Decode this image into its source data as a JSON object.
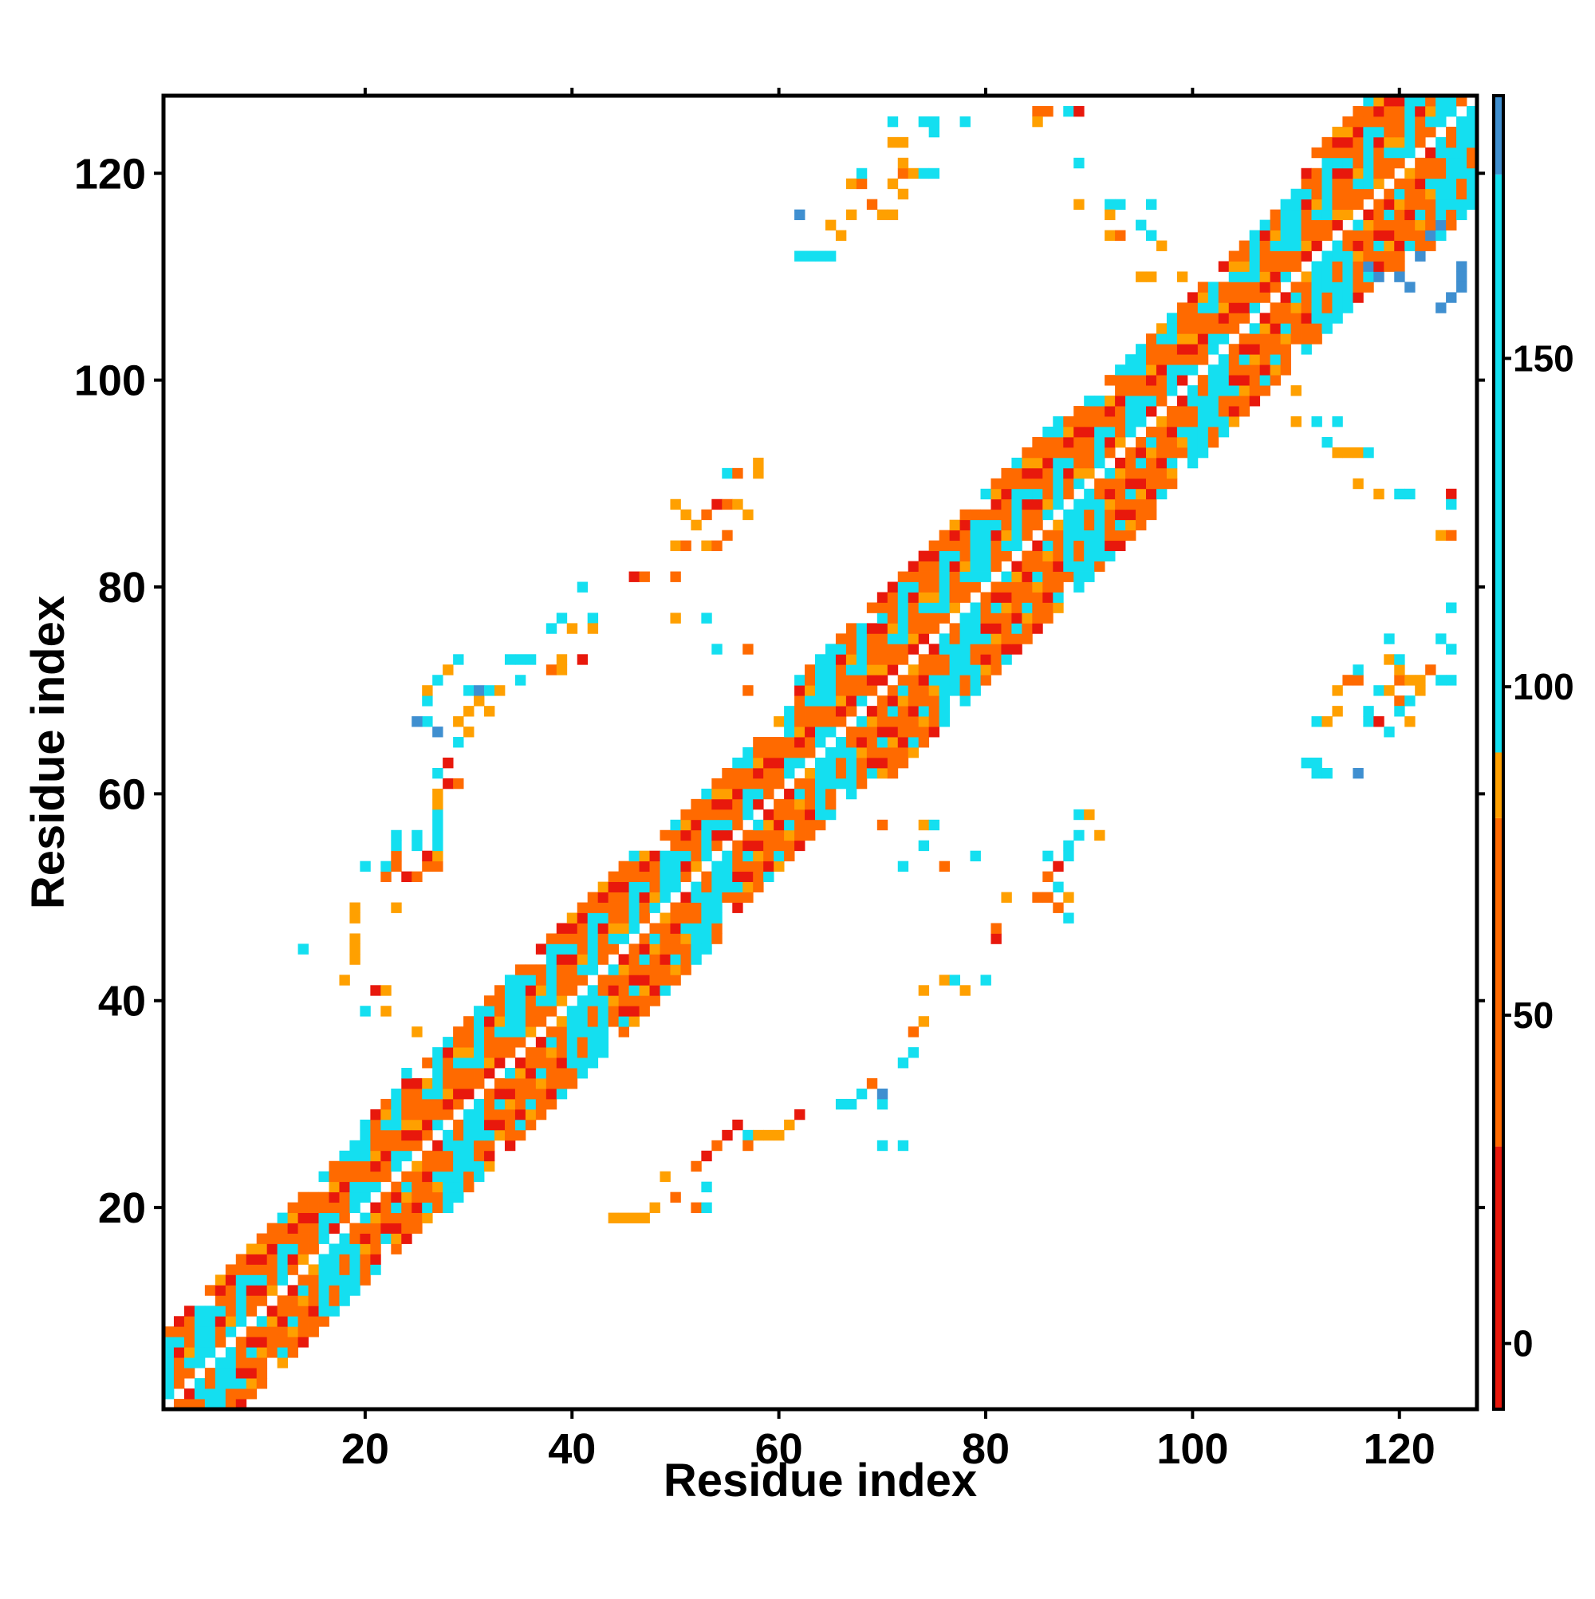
{
  "chart_data": {
    "type": "heatmap",
    "title": "",
    "xlabel": "Residue index",
    "ylabel": "Residue index",
    "xlim": [
      1,
      127
    ],
    "ylim": [
      1,
      127
    ],
    "x_ticks": [
      20,
      40,
      60,
      80,
      100,
      120
    ],
    "y_ticks": [
      20,
      40,
      60,
      80,
      100,
      120
    ],
    "colorbar": {
      "range": [
        -10,
        190
      ],
      "ticks": [
        0,
        50,
        100,
        150
      ],
      "bands": [
        {
          "from": -10,
          "to": 30,
          "color": "#e8180c"
        },
        {
          "from": 30,
          "to": 80,
          "color": "#ff6a00"
        },
        {
          "from": 80,
          "to": 90,
          "color": "#ffa000"
        },
        {
          "from": 90,
          "to": 178,
          "color": "#14dff0"
        },
        {
          "from": 178,
          "to": 190,
          "color": "#3f8fd0"
        }
      ]
    },
    "palette": {
      "1": "#e8180c",
      "2": "#ff6a00",
      "3": "#ffa000",
      "4": "#14dff0",
      "5": "#3f8fd0"
    },
    "diagonal_band": {
      "description_hidden": true,
      "segments": [
        {
          "from": 1,
          "to": 20,
          "width": 7
        },
        {
          "from": 20,
          "to": 47,
          "width": 8
        },
        {
          "from": 47,
          "to": 62,
          "width": 7
        },
        {
          "from": 62,
          "to": 87,
          "width": 9
        },
        {
          "from": 87,
          "to": 111,
          "width": 8
        },
        {
          "from": 111,
          "to": 127,
          "width": 10
        }
      ],
      "pattern": [
        2,
        2,
        4,
        2,
        1,
        2,
        4,
        4,
        2,
        3,
        2,
        4,
        2,
        1,
        4,
        2,
        3,
        4,
        2,
        2,
        4,
        1,
        2,
        4
      ]
    },
    "off_diagonal_contacts": [
      [
        14,
        45,
        4
      ],
      [
        18,
        42,
        3
      ],
      [
        19,
        44,
        3
      ],
      [
        19,
        45,
        3
      ],
      [
        19,
        46,
        3
      ],
      [
        19,
        48,
        3
      ],
      [
        19,
        49,
        3
      ],
      [
        20,
        39,
        4
      ],
      [
        20,
        53,
        4
      ],
      [
        21,
        41,
        1
      ],
      [
        22,
        39,
        3
      ],
      [
        22,
        41,
        3
      ],
      [
        22,
        52,
        2
      ],
      [
        22,
        53,
        4
      ],
      [
        23,
        49,
        3
      ],
      [
        23,
        53,
        2
      ],
      [
        23,
        54,
        2
      ],
      [
        23,
        55,
        4
      ],
      [
        23,
        56,
        4
      ],
      [
        24,
        33,
        4
      ],
      [
        24,
        52,
        1
      ],
      [
        25,
        37,
        3
      ],
      [
        25,
        52,
        2
      ],
      [
        25,
        55,
        4
      ],
      [
        25,
        56,
        4
      ],
      [
        26,
        53,
        2
      ],
      [
        26,
        54,
        1
      ],
      [
        27,
        53,
        2
      ],
      [
        27,
        54,
        3
      ],
      [
        27,
        55,
        4
      ],
      [
        27,
        56,
        4
      ],
      [
        27,
        57,
        4
      ],
      [
        27,
        58,
        4
      ],
      [
        27,
        59,
        3
      ],
      [
        27,
        60,
        3
      ],
      [
        28,
        61,
        1
      ],
      [
        27,
        62,
        4
      ],
      [
        27,
        66,
        5
      ],
      [
        26,
        67,
        4
      ],
      [
        26,
        69,
        4
      ],
      [
        29,
        61,
        2
      ],
      [
        28,
        63,
        1
      ],
      [
        29,
        65,
        4
      ],
      [
        29,
        67,
        3
      ],
      [
        30,
        70,
        3
      ],
      [
        31,
        69,
        3
      ],
      [
        32,
        68,
        3
      ],
      [
        34,
        73,
        4
      ],
      [
        35,
        71,
        4
      ],
      [
        30,
        66,
        3
      ],
      [
        25,
        67,
        5
      ],
      [
        26,
        70,
        3
      ],
      [
        27,
        71,
        4
      ],
      [
        28,
        72,
        3
      ],
      [
        29,
        73,
        4
      ],
      [
        30,
        70,
        4
      ],
      [
        31,
        70,
        5
      ],
      [
        32,
        70,
        4
      ],
      [
        33,
        70,
        3
      ],
      [
        30,
        68,
        3
      ],
      [
        44,
        19,
        3
      ],
      [
        45,
        19,
        3
      ],
      [
        46,
        19,
        3
      ],
      [
        47,
        19,
        3
      ],
      [
        48,
        20,
        3
      ],
      [
        49,
        23,
        3
      ],
      [
        50,
        21,
        2
      ],
      [
        52,
        20,
        2
      ],
      [
        53,
        20,
        4
      ],
      [
        53,
        22,
        4
      ],
      [
        52,
        24,
        2
      ],
      [
        53,
        25,
        1
      ],
      [
        54,
        26,
        2
      ],
      [
        55,
        27,
        1
      ],
      [
        56,
        28,
        1
      ],
      [
        57,
        27,
        4
      ],
      [
        57,
        26,
        2
      ],
      [
        58,
        27,
        3
      ],
      [
        59,
        27,
        3
      ],
      [
        60,
        27,
        3
      ],
      [
        61,
        28,
        3
      ],
      [
        62,
        29,
        1
      ],
      [
        66,
        30,
        4
      ],
      [
        67,
        30,
        4
      ],
      [
        68,
        31,
        4
      ],
      [
        69,
        32,
        2
      ],
      [
        70,
        30,
        4
      ],
      [
        70,
        31,
        5
      ],
      [
        70,
        26,
        4
      ],
      [
        72,
        26,
        4
      ],
      [
        72,
        34,
        4
      ],
      [
        73,
        35,
        4
      ],
      [
        73,
        37,
        2
      ],
      [
        74,
        38,
        3
      ],
      [
        74,
        41,
        3
      ],
      [
        76,
        42,
        3
      ],
      [
        77,
        42,
        4
      ],
      [
        78,
        41,
        3
      ],
      [
        80,
        42,
        4
      ],
      [
        81,
        46,
        1
      ],
      [
        81,
        47,
        2
      ],
      [
        82,
        50,
        2
      ],
      [
        82,
        50,
        3
      ],
      [
        85,
        50,
        2
      ],
      [
        86,
        50,
        2
      ],
      [
        87,
        49,
        2
      ],
      [
        88,
        48,
        4
      ],
      [
        88,
        50,
        3
      ],
      [
        86,
        52,
        2
      ],
      [
        87,
        53,
        1
      ],
      [
        88,
        54,
        4
      ],
      [
        88,
        55,
        4
      ],
      [
        89,
        56,
        4
      ],
      [
        89,
        58,
        4
      ],
      [
        90,
        58,
        3
      ],
      [
        91,
        56,
        3
      ],
      [
        86,
        54,
        4
      ],
      [
        87,
        51,
        4
      ],
      [
        79,
        54,
        4
      ],
      [
        76,
        53,
        2
      ],
      [
        74,
        57,
        3
      ],
      [
        75,
        57,
        4
      ],
      [
        70,
        57,
        2
      ],
      [
        72,
        53,
        4
      ],
      [
        74,
        55,
        4
      ],
      [
        50,
        88,
        3
      ],
      [
        51,
        87,
        3
      ],
      [
        52,
        86,
        3
      ],
      [
        53,
        87,
        2
      ],
      [
        54,
        88,
        1
      ],
      [
        55,
        88,
        2
      ],
      [
        56,
        88,
        3
      ],
      [
        57,
        87,
        3
      ],
      [
        55,
        91,
        4
      ],
      [
        56,
        91,
        2
      ],
      [
        58,
        92,
        3
      ],
      [
        58,
        91,
        3
      ],
      [
        50,
        84,
        3
      ],
      [
        51,
        84,
        2
      ],
      [
        53,
        84,
        3
      ],
      [
        54,
        84,
        2
      ],
      [
        55,
        85,
        2
      ],
      [
        46,
        81,
        1
      ],
      [
        47,
        81,
        2
      ],
      [
        50,
        81,
        2
      ],
      [
        41,
        80,
        4
      ],
      [
        39,
        77,
        4
      ],
      [
        42,
        77,
        4
      ],
      [
        42,
        76,
        3
      ],
      [
        40,
        76,
        3
      ],
      [
        38,
        76,
        4
      ],
      [
        50,
        77,
        3
      ],
      [
        53,
        77,
        4
      ],
      [
        54,
        74,
        4
      ],
      [
        57,
        74,
        2
      ],
      [
        57,
        70,
        2
      ],
      [
        41,
        73,
        1
      ],
      [
        39,
        73,
        3
      ],
      [
        38,
        72,
        2
      ],
      [
        36,
        73,
        4
      ],
      [
        35,
        73,
        4
      ],
      [
        39,
        72,
        3
      ],
      [
        62,
        116,
        5
      ],
      [
        62,
        112,
        4
      ],
      [
        63,
        112,
        4
      ],
      [
        64,
        112,
        4
      ],
      [
        65,
        112,
        4
      ],
      [
        65,
        115,
        3
      ],
      [
        66,
        114,
        3
      ],
      [
        67,
        116,
        3
      ],
      [
        67,
        119,
        3
      ],
      [
        68,
        119,
        2
      ],
      [
        68,
        120,
        4
      ],
      [
        69,
        117,
        2
      ],
      [
        70,
        116,
        3
      ],
      [
        71,
        116,
        3
      ],
      [
        71,
        119,
        3
      ],
      [
        72,
        120,
        2
      ],
      [
        72,
        118,
        3
      ],
      [
        73,
        120,
        3
      ],
      [
        74,
        120,
        4
      ],
      [
        75,
        120,
        4
      ],
      [
        72,
        121,
        3
      ],
      [
        71,
        123,
        3
      ],
      [
        72,
        123,
        3
      ],
      [
        71,
        125,
        4
      ],
      [
        74,
        125,
        4
      ],
      [
        75,
        124,
        4
      ],
      [
        75,
        125,
        4
      ],
      [
        78,
        125,
        4
      ],
      [
        85,
        126,
        2
      ],
      [
        86,
        126,
        2
      ],
      [
        88,
        126,
        4
      ],
      [
        89,
        126,
        1
      ],
      [
        85,
        125,
        3
      ],
      [
        89,
        121,
        4
      ],
      [
        89,
        117,
        3
      ],
      [
        92,
        117,
        4
      ],
      [
        93,
        117,
        4
      ],
      [
        92,
        116,
        3
      ],
      [
        92,
        114,
        3
      ],
      [
        93,
        114,
        2
      ],
      [
        95,
        115,
        4
      ],
      [
        96,
        114,
        4
      ],
      [
        97,
        113,
        3
      ],
      [
        96,
        117,
        4
      ],
      [
        95,
        110,
        3
      ],
      [
        96,
        110,
        3
      ],
      [
        99,
        110,
        3
      ],
      [
        110,
        99,
        3
      ],
      [
        110,
        96,
        3
      ],
      [
        112,
        96,
        4
      ],
      [
        114,
        96,
        4
      ],
      [
        113,
        94,
        4
      ],
      [
        114,
        93,
        3
      ],
      [
        115,
        93,
        3
      ],
      [
        116,
        93,
        3
      ],
      [
        117,
        93,
        4
      ],
      [
        116,
        90,
        3
      ],
      [
        118,
        89,
        3
      ],
      [
        120,
        89,
        4
      ],
      [
        121,
        89,
        4
      ],
      [
        125,
        89,
        1
      ],
      [
        125,
        88,
        4
      ],
      [
        124,
        85,
        3
      ],
      [
        125,
        85,
        2
      ],
      [
        111,
        63,
        4
      ],
      [
        112,
        63,
        4
      ],
      [
        112,
        62,
        4
      ],
      [
        113,
        62,
        4
      ],
      [
        116,
        62,
        5
      ],
      [
        112,
        67,
        4
      ],
      [
        113,
        67,
        3
      ],
      [
        114,
        68,
        3
      ],
      [
        114,
        70,
        3
      ],
      [
        115,
        71,
        2
      ],
      [
        116,
        71,
        2
      ],
      [
        117,
        67,
        4
      ],
      [
        117,
        68,
        4
      ],
      [
        118,
        70,
        4
      ],
      [
        119,
        70,
        3
      ],
      [
        120,
        71,
        2
      ],
      [
        120,
        72,
        3
      ],
      [
        121,
        71,
        3
      ],
      [
        120,
        69,
        2
      ],
      [
        121,
        67,
        3
      ],
      [
        122,
        71,
        3
      ],
      [
        123,
        72,
        2
      ],
      [
        124,
        71,
        4
      ],
      [
        125,
        71,
        4
      ],
      [
        124,
        75,
        4
      ],
      [
        125,
        74,
        4
      ],
      [
        125,
        78,
        4
      ],
      [
        119,
        75,
        4
      ],
      [
        119,
        73,
        3
      ],
      [
        120,
        68,
        4
      ],
      [
        118,
        67,
        1
      ],
      [
        119,
        66,
        4
      ],
      [
        121,
        69,
        4
      ],
      [
        122,
        70,
        3
      ],
      [
        116,
        72,
        4
      ],
      [
        120,
        73,
        4
      ],
      [
        126,
        109,
        5
      ],
      [
        126,
        110,
        5
      ],
      [
        125,
        108,
        5
      ],
      [
        124,
        107,
        5
      ],
      [
        126,
        111,
        5
      ],
      [
        120,
        110,
        5
      ],
      [
        121,
        109,
        5
      ],
      [
        118,
        110,
        5
      ],
      [
        117,
        111,
        5
      ],
      [
        122,
        112,
        5
      ],
      [
        123,
        114,
        5
      ],
      [
        124,
        115,
        5
      ]
    ]
  }
}
